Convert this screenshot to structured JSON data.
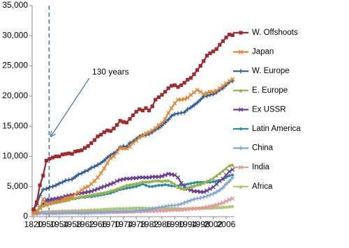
{
  "chart_data": {
    "type": "line",
    "annotation": "130 years",
    "categories": [
      "1820",
      null,
      null,
      null,
      "1950",
      null,
      null,
      null,
      "1954",
      null,
      null,
      null,
      "1958",
      null,
      null,
      null,
      "1962",
      null,
      null,
      null,
      "1966",
      null,
      null,
      null,
      "1970",
      null,
      null,
      null,
      "1974",
      null,
      null,
      null,
      "1978",
      null,
      null,
      null,
      "1982",
      null,
      null,
      null,
      "1986",
      null,
      null,
      null,
      "1990",
      null,
      null,
      null,
      "1994",
      null,
      null,
      null,
      "1998",
      null,
      null,
      null,
      "2002",
      null,
      null,
      null,
      "2006",
      null,
      null
    ],
    "ylim": [
      0,
      35000
    ],
    "yticks": [
      0,
      {
        "value": 5000,
        "label": "5,000"
      },
      {
        "value": 10000,
        "label": "10,000"
      },
      {
        "value": 15000,
        "label": "15,000"
      },
      {
        "value": 20000,
        "label": "20,000"
      },
      {
        "value": 25000,
        "label": "25,000"
      },
      {
        "value": 30000,
        "label": "30,000"
      },
      {
        "value": 35000,
        "label": "35,000"
      }
    ],
    "series": [
      {
        "name": "W. Offshoots",
        "color": "#a3282b",
        "marker": "square",
        "values": [
          1200,
          2400,
          5200,
          6800,
          9300,
          9600,
          9800,
          10000,
          10000,
          10300,
          10400,
          10500,
          10400,
          10800,
          10900,
          11000,
          11400,
          11700,
          12200,
          12700,
          13300,
          13600,
          14000,
          14300,
          14200,
          14600,
          15200,
          15900,
          15700,
          15600,
          16200,
          16800,
          17400,
          17800,
          17600,
          18000,
          17600,
          18300,
          19400,
          19800,
          20200,
          20700,
          21300,
          21700,
          21800,
          21500,
          21800,
          22200,
          22700,
          23000,
          23600,
          24300,
          25000,
          25800,
          26700,
          27100,
          27400,
          27800,
          28500,
          29100,
          29700,
          30200,
          30100
        ]
      },
      {
        "name": "Japan",
        "color": "#e8832e",
        "marker": "x",
        "values": [
          670,
          740,
          1400,
          2900,
          1900,
          2100,
          2300,
          2500,
          2500,
          2800,
          3000,
          3100,
          3300,
          3700,
          4000,
          4400,
          4800,
          5000,
          5400,
          5900,
          6500,
          7200,
          8000,
          8900,
          9700,
          10000,
          10700,
          11400,
          11300,
          11300,
          11600,
          12200,
          12600,
          13100,
          13400,
          13800,
          14000,
          14300,
          14700,
          15200,
          15500,
          16200,
          17200,
          18000,
          18800,
          19400,
          19400,
          19500,
          19700,
          20200,
          20600,
          21000,
          20700,
          20300,
          20500,
          20700,
          20700,
          20900,
          21300,
          21700,
          22100,
          22500,
          22800
        ]
      },
      {
        "name": "W. Europe",
        "color": "#2b5c9e",
        "marker": "plus",
        "values": [
          1200,
          2000,
          3500,
          4500,
          4600,
          4900,
          5000,
          5200,
          5500,
          5700,
          6000,
          6100,
          6200,
          6600,
          7000,
          7200,
          7500,
          7700,
          8100,
          8300,
          8600,
          8900,
          9300,
          9800,
          10200,
          10500,
          10900,
          11500,
          11700,
          11600,
          12200,
          12500,
          12900,
          13300,
          13500,
          13500,
          13700,
          14000,
          14400,
          14700,
          15100,
          15600,
          16100,
          16700,
          17000,
          17100,
          17200,
          17300,
          17800,
          18100,
          18500,
          18900,
          19400,
          19900,
          20000,
          20200,
          20300,
          20600,
          21000,
          21300,
          21800,
          22300,
          22500
        ]
      },
      {
        "name": "E. Europe",
        "color": "#8fb34a",
        "marker": "triangle",
        "values": [
          700,
          900,
          1700,
          1800,
          2100,
          2200,
          2300,
          2400,
          2500,
          2600,
          2700,
          2800,
          3000,
          3100,
          3200,
          3300,
          3400,
          3500,
          3600,
          3700,
          3800,
          3900,
          4000,
          4100,
          4300,
          4400,
          4600,
          4800,
          5000,
          5200,
          5300,
          5400,
          5500,
          5600,
          5800,
          5800,
          5800,
          5900,
          6000,
          6000,
          5900,
          6000,
          6000,
          5700,
          5400,
          4900,
          4700,
          4600,
          4800,
          5000,
          5100,
          5300,
          5400,
          5600,
          5900,
          6100,
          6400,
          6800,
          7200,
          7600,
          8000,
          8500,
          8600
        ]
      },
      {
        "name": "Ex USSR",
        "color": "#6a3c95",
        "marker": "x",
        "values": [
          700,
          950,
          1500,
          2100,
          2800,
          2800,
          2900,
          3000,
          3100,
          3200,
          3400,
          3500,
          3600,
          3700,
          3800,
          3900,
          4000,
          4100,
          4200,
          4400,
          4600,
          4800,
          5000,
          5200,
          5400,
          5600,
          5900,
          6100,
          6200,
          6300,
          6300,
          6400,
          6400,
          6500,
          6500,
          6500,
          6500,
          6600,
          6600,
          6600,
          6700,
          6900,
          7100,
          7000,
          6900,
          6500,
          5600,
          5000,
          4600,
          4400,
          4200,
          4200,
          4100,
          4100,
          4300,
          4600,
          4900,
          5400,
          5900,
          6300,
          6900,
          7500,
          7800
        ]
      },
      {
        "name": "Latin America",
        "color": "#2a8aa5",
        "marker": "circle",
        "values": [
          700,
          700,
          1500,
          1900,
          2500,
          2600,
          2600,
          2600,
          2700,
          2800,
          2900,
          2900,
          3000,
          3000,
          3100,
          3200,
          3200,
          3300,
          3300,
          3400,
          3500,
          3600,
          3700,
          3800,
          3900,
          4100,
          4300,
          4500,
          4600,
          4700,
          4800,
          4900,
          5000,
          5200,
          5400,
          5200,
          5000,
          5000,
          5100,
          5200,
          5200,
          5300,
          5200,
          5100,
          5100,
          5100,
          5200,
          5300,
          5400,
          5500,
          5600,
          5700,
          5700,
          5700,
          5700,
          5700,
          5800,
          5900,
          6000,
          6200,
          6500,
          6800,
          6900
        ]
      },
      {
        "name": "China",
        "color": "#7fa6d7",
        "marker": "plus",
        "values": [
          600,
          530,
          550,
          560,
          450,
          500,
          540,
          560,
          580,
          600,
          620,
          640,
          700,
          650,
          550,
          550,
          570,
          600,
          640,
          700,
          750,
          700,
          700,
          750,
          780,
          800,
          800,
          850,
          850,
          880,
          900,
          900,
          980,
          1050,
          1070,
          1100,
          1190,
          1270,
          1400,
          1520,
          1600,
          1700,
          1800,
          1830,
          1870,
          1960,
          2100,
          2300,
          2500,
          2700,
          2900,
          3000,
          3100,
          3250,
          3400,
          3600,
          3800,
          4100,
          4400,
          4800,
          5400,
          5900,
          6500
        ]
      },
      {
        "name": "India",
        "color": "#e59a98",
        "marker": "x",
        "values": [
          530,
          530,
          670,
          690,
          620,
          620,
          630,
          610,
          640,
          650,
          650,
          670,
          650,
          680,
          700,
          710,
          690,
          700,
          710,
          720,
          700,
          720,
          740,
          760,
          770,
          770,
          760,
          760,
          790,
          790,
          800,
          810,
          850,
          820,
          880,
          890,
          880,
          920,
          940,
          960,
          990,
          990,
          1050,
          1080,
          1110,
          1090,
          1120,
          1160,
          1220,
          1280,
          1320,
          1350,
          1380,
          1460,
          1600,
          1700,
          1800,
          1950,
          2100,
          2300,
          2550,
          2800,
          3000
        ]
      },
      {
        "name": "Africa",
        "color": "#a9c96e",
        "marker": "triangle",
        "values": [
          420,
          500,
          640,
          810,
          890,
          910,
          930,
          950,
          960,
          980,
          1000,
          1000,
          1020,
          1050,
          1060,
          1080,
          1100,
          1130,
          1160,
          1180,
          1200,
          1220,
          1270,
          1300,
          1330,
          1350,
          1380,
          1400,
          1410,
          1420,
          1450,
          1460,
          1490,
          1510,
          1480,
          1460,
          1450,
          1440,
          1420,
          1440,
          1450,
          1440,
          1440,
          1440,
          1430,
          1420,
          1390,
          1380,
          1400,
          1410,
          1430,
          1440,
          1450,
          1450,
          1470,
          1480,
          1500,
          1530,
          1560,
          1600,
          1640,
          1690,
          1740
        ]
      }
    ]
  }
}
